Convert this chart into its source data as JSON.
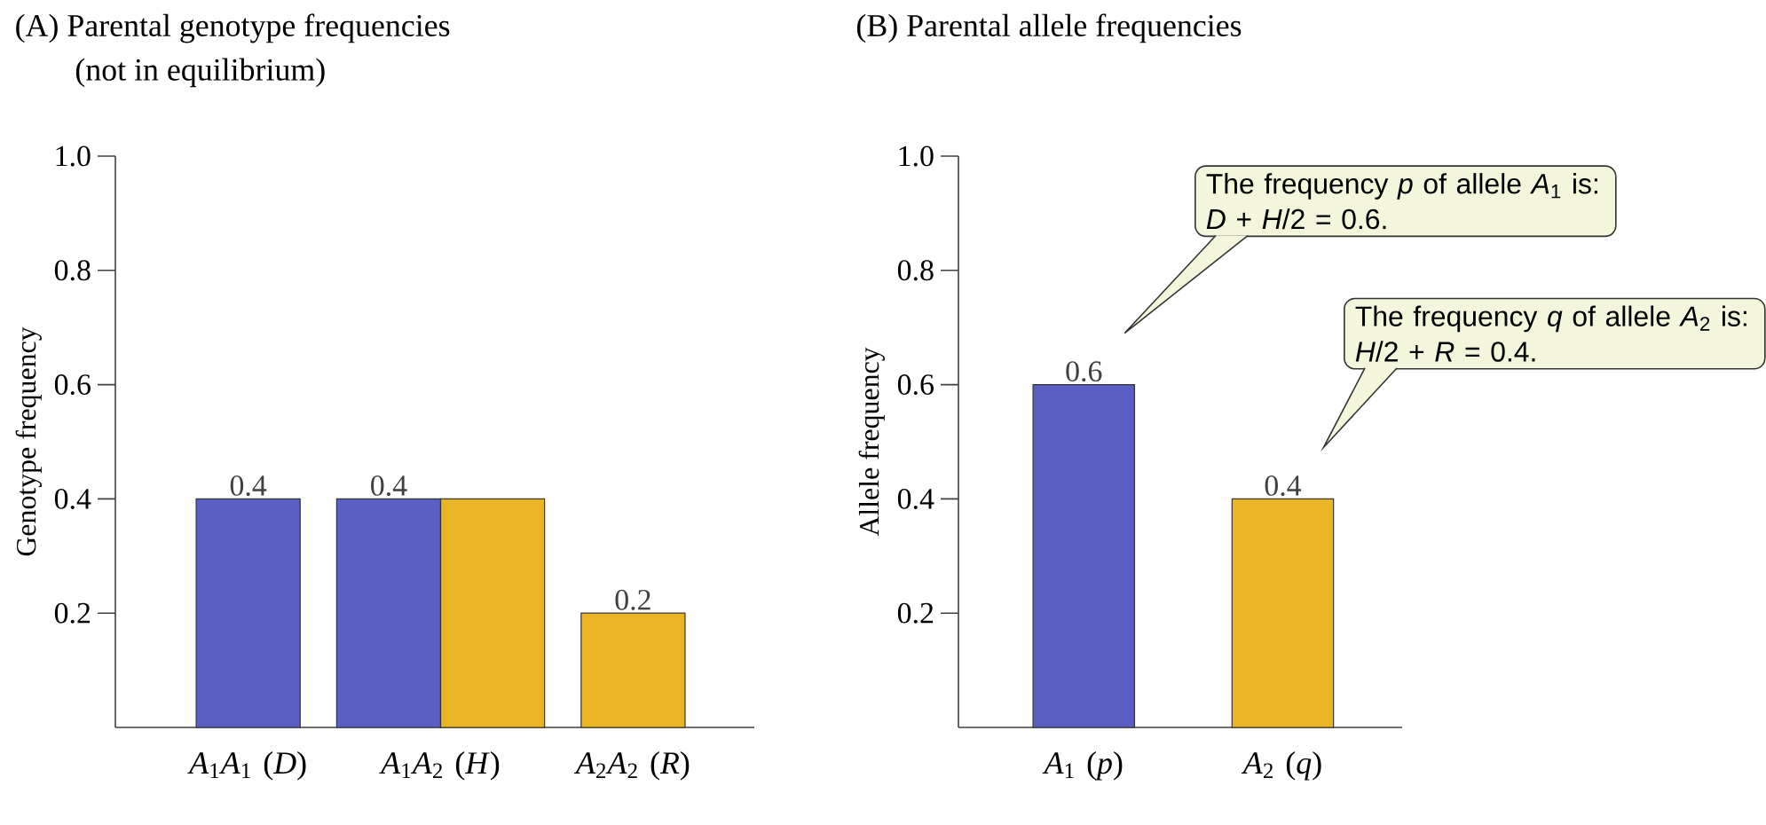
{
  "chart_data": [
    {
      "type": "bar",
      "title": "(A) Parental genotype frequencies",
      "subtitle": "(not in equilibrium)",
      "ylabel": "Genotype frequency",
      "categories": [
        "*A*$_{1}$*A*$_{1}$ (*D*)",
        "*A*$_{1}$*A*$_{2}$ (*H*)",
        "*A*$_{2}$*A*$_{2}$ (*R*)"
      ],
      "series": [
        {
          "color": "#5a5fc4",
          "values": [
            0.4,
            0.4,
            null
          ],
          "value_labels": [
            "0.4",
            "0.4",
            null
          ]
        },
        {
          "color": "#eab425",
          "values": [
            null,
            0.4,
            0.2
          ],
          "value_labels": [
            null,
            null,
            "0.2"
          ]
        }
      ],
      "ylim": [
        0,
        1.0
      ],
      "yticks": [
        {
          "value": 0.2,
          "label": "0.2"
        },
        {
          "value": 0.4,
          "label": "0.4"
        },
        {
          "value": 0.6,
          "label": "0.6"
        },
        {
          "value": 0.8,
          "label": "0.8"
        },
        {
          "value": 1.0,
          "label": "1.0"
        }
      ]
    },
    {
      "type": "bar",
      "title": "(B) Parental allele frequencies",
      "ylabel": "Allele frequency",
      "categories": [
        "*A*$_{1}$ (*p*)",
        "*A*$_{2}$ (*q*)"
      ],
      "values": [
        0.6,
        0.4
      ],
      "colors": [
        "#5a5fc4",
        "#eab425"
      ],
      "data_labels": true,
      "ylim": [
        0,
        1.0
      ],
      "yticks": [
        {
          "value": 0.2,
          "label": "0.2"
        },
        {
          "value": 0.4,
          "label": "0.4"
        },
        {
          "value": 0.6,
          "label": "0.6"
        },
        {
          "value": 0.8,
          "label": "0.8"
        },
        {
          "value": 1.0,
          "label": "1.0"
        }
      ],
      "annotations": [
        "The frequency *p* of allele *A*$_{1}$ is: *D* + *H*/2 = 0.6.",
        "The frequency *q* of allele *A*$_{2}$ is: *H*/2 + *R* = 0.4."
      ]
    }
  ]
}
